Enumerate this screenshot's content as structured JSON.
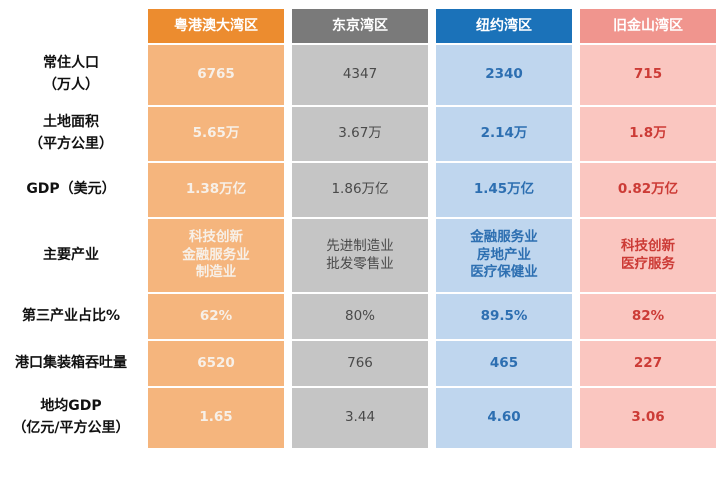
{
  "columns": {
    "gba": "粤港澳大湾区",
    "tokyo": "东京湾区",
    "newyork": "纽约湾区",
    "sf": "旧金山湾区"
  },
  "rows": [
    {
      "label": "常住人口\n（万人）",
      "gba": "6765",
      "tokyo": "4347",
      "newyork": "2340",
      "sf": "715"
    },
    {
      "label": "土地面积\n（平方公里）",
      "gba": "5.65万",
      "tokyo": "3.67万",
      "newyork": "2.14万",
      "sf": "1.8万"
    },
    {
      "label": "GDP（美元）",
      "gba": "1.38万亿",
      "tokyo": "1.86万亿",
      "newyork": "1.45万亿",
      "sf": "0.82万亿"
    },
    {
      "label": "主要产业",
      "gba": "科技创新\n金融服务业\n制造业",
      "tokyo": "先进制造业\n批发零售业",
      "newyork": "金融服务业\n房地产业\n医疗保健业",
      "sf": "科技创新\n医疗服务"
    },
    {
      "label": "第三产业占比%",
      "gba": "62%",
      "tokyo": "80%",
      "newyork": "89.5%",
      "sf": "82%"
    },
    {
      "label": "港口集装箱吞吐量",
      "gba": "6520",
      "tokyo": "766",
      "newyork": "465",
      "sf": "227"
    },
    {
      "label": "地均GDP\n（亿元/平方公里）",
      "gba": "1.65",
      "tokyo": "3.44",
      "newyork": "4.60",
      "sf": "3.06"
    }
  ],
  "colors": {
    "gba_header": "#ec8c2f",
    "gba_cell": "#f5b57d",
    "tokyo_header": "#7a7a7a",
    "tokyo_cell": "#c5c5c5",
    "newyork_header": "#1b72b9",
    "newyork_cell": "#bfd6ee",
    "sf_header": "#f0958e",
    "sf_cell": "#fac6c0"
  }
}
